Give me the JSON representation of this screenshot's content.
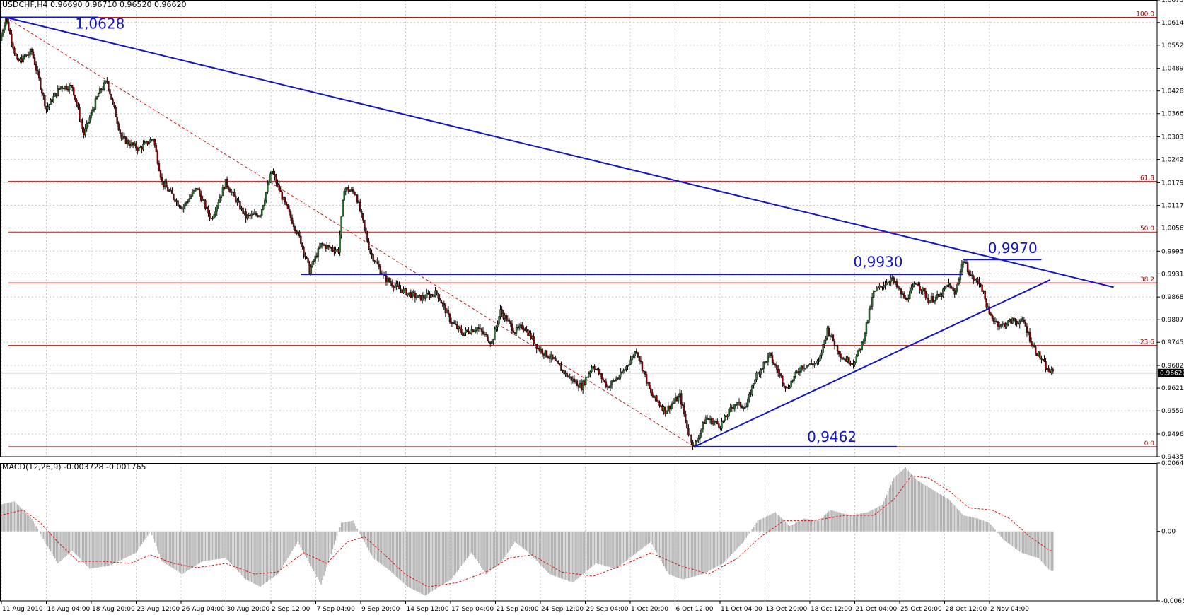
{
  "chart_data": {
    "type": "candlestick",
    "symbol_header": "USDCHF,H4  0.96690 0.96710 0.96520 0.96620",
    "price_axis": {
      "range": [
        0.9435,
        1.0675
      ],
      "ticks": [
        "1.06750",
        "1.06140",
        "1.05525",
        "1.04895",
        "1.04280",
        "1.03665",
        "1.03035",
        "1.02420",
        "1.01790",
        "1.01175",
        "1.00560",
        "0.99930",
        "0.99315",
        "0.98685",
        "0.98070",
        "0.97455",
        "0.96825",
        "0.96210",
        "0.95595",
        "0.94965",
        "0.94350"
      ],
      "current_price": "0.96620"
    },
    "time_axis": {
      "ticks": [
        "11 Aug 2010",
        "16 Aug 04:00",
        "18 Aug 20:00",
        "23 Aug 12:00",
        "26 Aug 04:00",
        "30 Aug 20:00",
        "2 Sep 12:00",
        "7 Sep 04:00",
        "9 Sep 20:00",
        "14 Sep 12:00",
        "17 Sep 04:00",
        "21 Sep 20:00",
        "24 Sep 12:00",
        "29 Sep 04:00",
        "1 Oct 20:00",
        "6 Oct 12:00",
        "11 Oct 04:00",
        "13 Oct 20:00",
        "18 Oct 12:00",
        "21 Oct 04:00",
        "25 Oct 20:00",
        "28 Oct 12:00",
        "2 Nov 04:00"
      ]
    },
    "price_path": [
      [
        0,
        1.0565
      ],
      [
        4,
        1.0628
      ],
      [
        12,
        1.0505
      ],
      [
        22,
        1.0535
      ],
      [
        32,
        1.038
      ],
      [
        42,
        1.044
      ],
      [
        50,
        1.044
      ],
      [
        58,
        1.031
      ],
      [
        68,
        1.042
      ],
      [
        74,
        1.0455
      ],
      [
        84,
        1.03
      ],
      [
        96,
        1.027
      ],
      [
        106,
        1.03
      ],
      [
        112,
        1.018
      ],
      [
        126,
        1.011
      ],
      [
        136,
        1.0165
      ],
      [
        146,
        1.008
      ],
      [
        156,
        1.018
      ],
      [
        170,
        1.0085
      ],
      [
        180,
        1.0095
      ],
      [
        188,
        1.021
      ],
      [
        196,
        1.013
      ],
      [
        208,
        1.002
      ],
      [
        214,
        0.994
      ],
      [
        222,
        1.001
      ],
      [
        234,
        0.9995
      ],
      [
        238,
        1.0165
      ],
      [
        246,
        1.015
      ],
      [
        256,
        0.999
      ],
      [
        266,
        0.992
      ],
      [
        276,
        0.989
      ],
      [
        290,
        0.9865
      ],
      [
        302,
        0.988
      ],
      [
        312,
        0.98
      ],
      [
        320,
        0.977
      ],
      [
        330,
        0.9785
      ],
      [
        340,
        0.9745
      ],
      [
        346,
        0.983
      ],
      [
        356,
        0.9775
      ],
      [
        362,
        0.979
      ],
      [
        372,
        0.973
      ],
      [
        382,
        0.97
      ],
      [
        392,
        0.9655
      ],
      [
        402,
        0.9625
      ],
      [
        410,
        0.9685
      ],
      [
        420,
        0.9625
      ],
      [
        430,
        0.966
      ],
      [
        440,
        0.9725
      ],
      [
        450,
        0.9605
      ],
      [
        460,
        0.956
      ],
      [
        470,
        0.96
      ],
      [
        476,
        0.95
      ],
      [
        480,
        0.9462
      ],
      [
        488,
        0.954
      ],
      [
        498,
        0.952
      ],
      [
        508,
        0.958
      ],
      [
        516,
        0.957
      ],
      [
        522,
        0.965
      ],
      [
        532,
        0.971
      ],
      [
        544,
        0.962
      ],
      [
        554,
        0.968
      ],
      [
        566,
        0.969
      ],
      [
        572,
        0.978
      ],
      [
        582,
        0.9705
      ],
      [
        590,
        0.969
      ],
      [
        596,
        0.974
      ],
      [
        604,
        0.988
      ],
      [
        616,
        0.992
      ],
      [
        626,
        0.986
      ],
      [
        634,
        0.991
      ],
      [
        642,
        0.986
      ],
      [
        650,
        0.987
      ],
      [
        656,
        0.9905
      ],
      [
        660,
        0.9875
      ],
      [
        666,
        0.997
      ],
      [
        672,
        0.992
      ],
      [
        678,
        0.9905
      ],
      [
        684,
        0.982
      ],
      [
        692,
        0.979
      ],
      [
        700,
        0.9805
      ],
      [
        708,
        0.98
      ],
      [
        714,
        0.9735
      ],
      [
        720,
        0.97
      ],
      [
        724,
        0.967
      ],
      [
        728,
        0.9662
      ]
    ],
    "horizontal_lines": [
      {
        "name": "0.9930 level",
        "value": 0.993,
        "color": "#1414c8",
        "from_bar": 208,
        "to_bar": 666
      },
      {
        "name": "0.9970 high",
        "value": 0.997,
        "color": "#1414c8",
        "from_bar": 666,
        "to_bar": 720
      },
      {
        "name": "0.9462 low",
        "value": 0.9462,
        "color": "#1414c8",
        "from_bar": 480,
        "to_bar": 620
      },
      {
        "name": "1.0628 high",
        "value": 1.0628,
        "color": "#1414c8",
        "from_bar": 0,
        "to_bar": 68
      }
    ],
    "trend_lines": [
      {
        "name": "downtrend",
        "from": [
          4,
          1.0628
        ],
        "to": [
          770,
          0.9895
        ],
        "color": "#1414c8"
      },
      {
        "name": "uptrend",
        "from": [
          480,
          0.9462
        ],
        "to": [
          726,
          0.9915
        ],
        "color": "#1414c8"
      }
    ],
    "fibonacci": {
      "high": 1.0628,
      "low": 0.9462,
      "levels": [
        {
          "label": "100.0",
          "value": 1.0628
        },
        {
          "label": "61.8",
          "value": 1.0183
        },
        {
          "label": "50.0",
          "value": 1.0045
        },
        {
          "label": "38.2",
          "value": 0.9907
        },
        {
          "label": "23.6",
          "value": 0.9737
        },
        {
          "label": "0.0",
          "value": 0.9462
        }
      ],
      "diagonal": {
        "from": [
          4,
          1.0628
        ],
        "to": [
          480,
          0.9462
        ]
      }
    },
    "annotations": [
      {
        "text": "1,0628",
        "bar": 52,
        "price": 1.0597
      },
      {
        "text": "0,9930",
        "bar": 590,
        "price": 0.995
      },
      {
        "text": "0,9970",
        "bar": 683,
        "price": 0.9988
      },
      {
        "text": "0,9462",
        "bar": 558,
        "price": 0.9475
      }
    ],
    "macd": {
      "title": "MACD(12,26,9) -0.003728 -0.001765",
      "range": [
        -0.00651,
        0.0064
      ],
      "ticks": [
        "0.006403",
        "0.00",
        "-0.00651"
      ],
      "histogram_path": [
        [
          0,
          0.0025
        ],
        [
          10,
          0.0028
        ],
        [
          22,
          0.0012
        ],
        [
          32,
          -0.0012
        ],
        [
          40,
          -0.003
        ],
        [
          50,
          -0.0018
        ],
        [
          62,
          -0.0035
        ],
        [
          76,
          -0.0032
        ],
        [
          94,
          -0.002
        ],
        [
          104,
          0.0
        ],
        [
          112,
          -0.0028
        ],
        [
          126,
          -0.004
        ],
        [
          140,
          -0.0028
        ],
        [
          156,
          -0.0025
        ],
        [
          170,
          -0.0045
        ],
        [
          180,
          -0.0052
        ],
        [
          192,
          -0.004
        ],
        [
          206,
          -0.001
        ],
        [
          222,
          -0.005
        ],
        [
          236,
          0.0008
        ],
        [
          244,
          0.001
        ],
        [
          258,
          -0.0025
        ],
        [
          268,
          -0.0035
        ],
        [
          282,
          -0.0052
        ],
        [
          294,
          -0.006
        ],
        [
          312,
          -0.0045
        ],
        [
          326,
          -0.002
        ],
        [
          336,
          -0.004
        ],
        [
          346,
          -0.003
        ],
        [
          356,
          -0.001
        ],
        [
          364,
          -0.0018
        ],
        [
          380,
          -0.004
        ],
        [
          396,
          -0.0048
        ],
        [
          412,
          -0.003
        ],
        [
          426,
          -0.0035
        ],
        [
          440,
          -0.002
        ],
        [
          450,
          -0.001
        ],
        [
          462,
          -0.004
        ],
        [
          472,
          -0.0045
        ],
        [
          486,
          -0.004
        ],
        [
          500,
          -0.003
        ],
        [
          514,
          -0.001
        ],
        [
          524,
          0.001
        ],
        [
          536,
          0.0018
        ],
        [
          546,
          0.0005
        ],
        [
          556,
          0.0012
        ],
        [
          566,
          0.001
        ],
        [
          574,
          0.002
        ],
        [
          588,
          0.0015
        ],
        [
          600,
          0.0018
        ],
        [
          610,
          0.0025
        ],
        [
          618,
          0.005
        ],
        [
          626,
          0.006
        ],
        [
          634,
          0.0048
        ],
        [
          646,
          0.0038
        ],
        [
          656,
          0.003
        ],
        [
          666,
          0.0015
        ],
        [
          676,
          0.0012
        ],
        [
          684,
          0.0008
        ],
        [
          694,
          -0.0008
        ],
        [
          706,
          -0.002
        ],
        [
          718,
          -0.0025
        ],
        [
          726,
          -0.0037
        ]
      ],
      "signal_path": [
        [
          0,
          0.0015
        ],
        [
          16,
          0.002
        ],
        [
          28,
          0.0008
        ],
        [
          40,
          -0.001
        ],
        [
          54,
          -0.0028
        ],
        [
          70,
          -0.0028
        ],
        [
          90,
          -0.003
        ],
        [
          104,
          -0.0022
        ],
        [
          120,
          -0.003
        ],
        [
          136,
          -0.0034
        ],
        [
          156,
          -0.003
        ],
        [
          176,
          -0.004
        ],
        [
          192,
          -0.0038
        ],
        [
          210,
          -0.002
        ],
        [
          226,
          -0.003
        ],
        [
          240,
          -0.001
        ],
        [
          252,
          -0.0005
        ],
        [
          266,
          -0.0022
        ],
        [
          280,
          -0.004
        ],
        [
          296,
          -0.0052
        ],
        [
          316,
          -0.0048
        ],
        [
          336,
          -0.0038
        ],
        [
          352,
          -0.0025
        ],
        [
          368,
          -0.0022
        ],
        [
          388,
          -0.0038
        ],
        [
          410,
          -0.0042
        ],
        [
          430,
          -0.0032
        ],
        [
          450,
          -0.002
        ],
        [
          470,
          -0.0032
        ],
        [
          490,
          -0.004
        ],
        [
          510,
          -0.0025
        ],
        [
          526,
          -0.0005
        ],
        [
          542,
          0.001
        ],
        [
          562,
          0.001
        ],
        [
          584,
          0.0015
        ],
        [
          604,
          0.0015
        ],
        [
          618,
          0.003
        ],
        [
          630,
          0.0052
        ],
        [
          642,
          0.005
        ],
        [
          656,
          0.0038
        ],
        [
          670,
          0.0022
        ],
        [
          686,
          0.002
        ],
        [
          698,
          0.0012
        ],
        [
          712,
          -0.0005
        ],
        [
          726,
          -0.0018
        ]
      ]
    }
  }
}
